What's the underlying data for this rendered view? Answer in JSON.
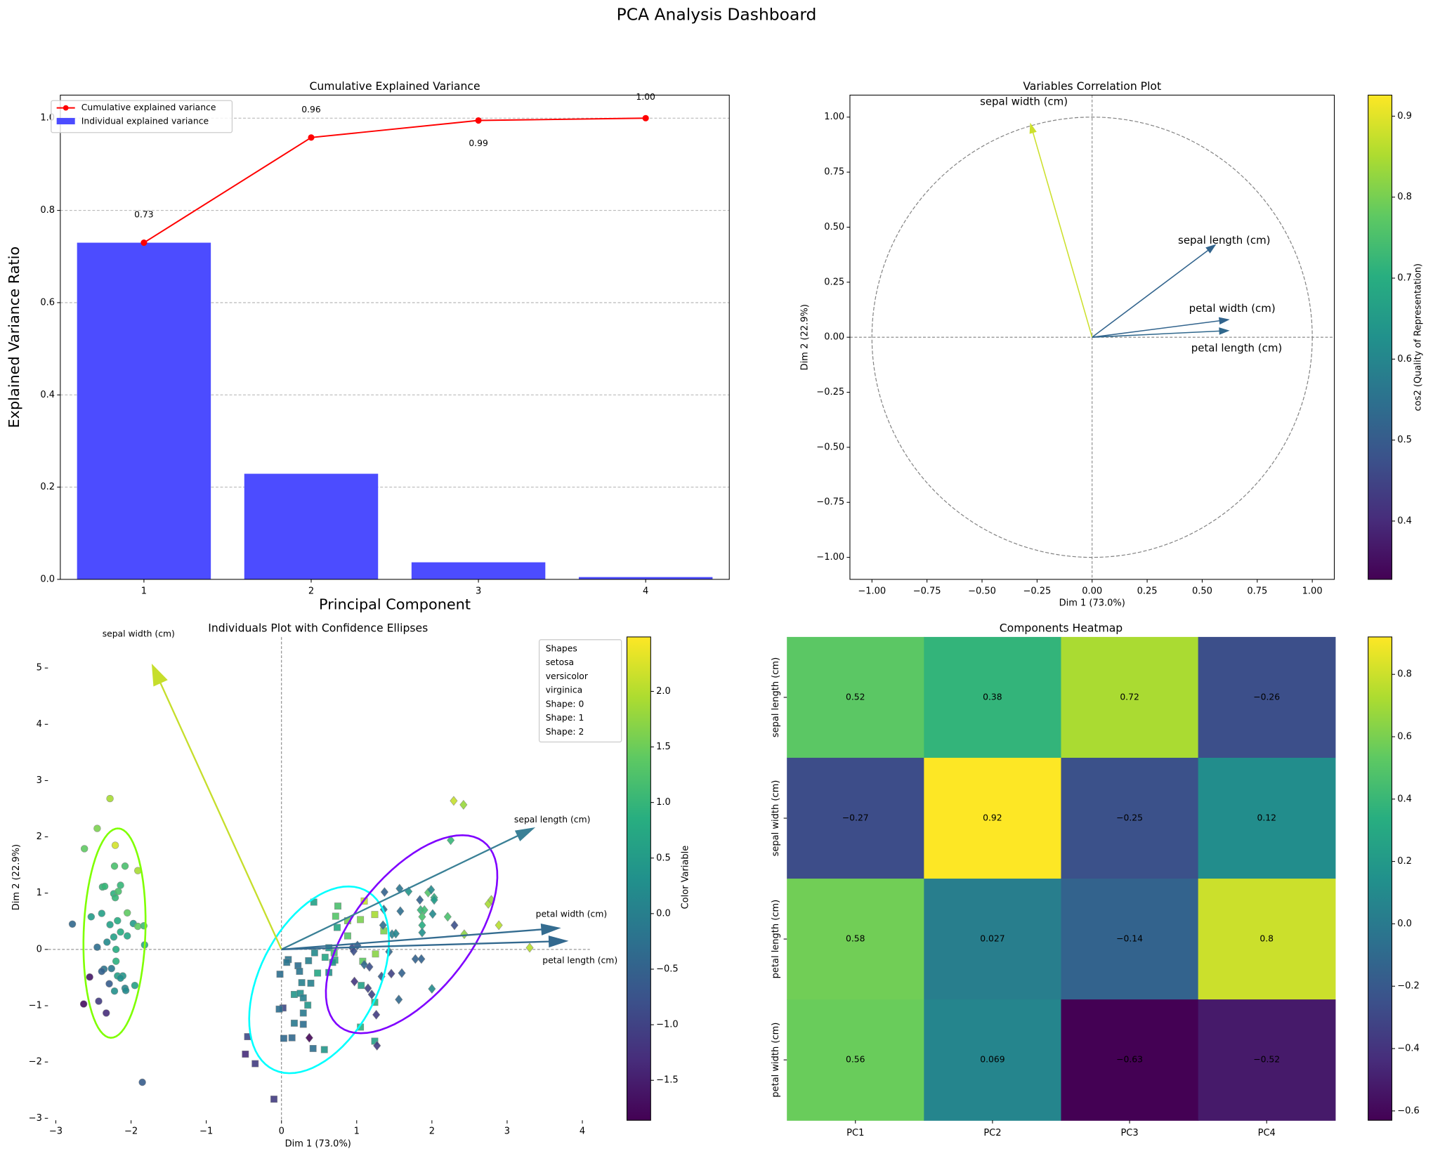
{
  "title": "PCA Analysis Dashboard",
  "viridis": [
    "#440154",
    "#472d7b",
    "#3b528b",
    "#2c728e",
    "#21918c",
    "#28ae80",
    "#5ec962",
    "#addc30",
    "#fde725"
  ],
  "chart_data": [
    {
      "type": "bar",
      "title": "Cumulative Explained Variance",
      "xlabel": "Principal Component",
      "ylabel": "Explained Variance Ratio",
      "categories": [
        1,
        2,
        3,
        4
      ],
      "xticks": [
        "1",
        "2",
        "3",
        "4"
      ],
      "yticks": [
        "0.0",
        "0.2",
        "0.4",
        "0.6",
        "0.8",
        "1.0"
      ],
      "ylim": [
        0,
        1.05
      ],
      "grid": "y, dashed",
      "legend_position": "top-left",
      "series": [
        {
          "name": "Individual explained variance",
          "type": "bar",
          "color": "#4c4cff",
          "values": [
            0.73,
            0.229,
            0.037,
            0.005
          ]
        },
        {
          "name": "Cumulative explained variance",
          "type": "line",
          "color": "#ff0000",
          "values": [
            0.73,
            0.958,
            0.995,
            1.0
          ]
        }
      ],
      "annotations": [
        "0.73",
        "0.96",
        "0.99",
        "1.00"
      ]
    },
    {
      "type": "scatter",
      "title": "Variables Correlation Plot",
      "xlabel": "Dim 1 (73.0%)",
      "ylabel": "Dim 2 (22.9%)",
      "xlim": [
        -1.1,
        1.1
      ],
      "ylim": [
        -1.1,
        1.1
      ],
      "xticks": [
        "-1.00",
        "-0.75",
        "-0.50",
        "-0.25",
        "0.00",
        "0.25",
        "0.50",
        "0.75",
        "1.00"
      ],
      "yticks": [
        "-1.00",
        "-0.75",
        "-0.50",
        "-0.25",
        "0.00",
        "0.25",
        "0.50",
        "0.75",
        "1.00"
      ],
      "vectors": [
        {
          "name": "sepal length (cm)",
          "x": 0.56,
          "y": 0.42,
          "cos2": 0.52
        },
        {
          "name": "sepal width (cm)",
          "x": -0.28,
          "y": 0.97,
          "cos2": 0.88
        },
        {
          "name": "petal length (cm)",
          "x": 0.62,
          "y": 0.03,
          "cos2": 0.53
        },
        {
          "name": "petal width (cm)",
          "x": 0.62,
          "y": 0.08,
          "cos2": 0.52
        }
      ],
      "colorbar": {
        "label": "cos2 (Quality of Representation)",
        "range": [
          0.328,
          0.926
        ],
        "ticks": [
          "0.4",
          "0.5",
          "0.6",
          "0.7",
          "0.8",
          "0.9"
        ]
      }
    },
    {
      "type": "scatter",
      "title": "Individuals Plot with Confidence Ellipses",
      "xlabel": "Dim 1 (73.0%)",
      "ylabel": "Dim 2 (22.9%)",
      "xlim": [
        -3.15,
        4.35
      ],
      "ylim": [
        -3.05,
        5.55
      ],
      "xticks": [
        "-3",
        "-2",
        "-1",
        "0",
        "1",
        "2",
        "3",
        "4"
      ],
      "yticks": [
        "-3",
        "-2",
        "-1",
        "0",
        "1",
        "2",
        "3",
        "4",
        "5"
      ],
      "legend": [
        "Shapes",
        "setosa",
        "versicolor",
        "virginica",
        "Shape: 0",
        "Shape: 1",
        "Shape: 2"
      ],
      "colorbar": {
        "label": "Color Variable",
        "range": [
          -1.86,
          2.49
        ],
        "ticks": [
          "-1.5",
          "-1.0",
          "-0.5",
          "0.0",
          "0.5",
          "1.0",
          "1.5",
          "2.0"
        ]
      },
      "groups": [
        {
          "name": "setosa",
          "marker": "circle",
          "ellipse_color": "#7fff00",
          "ellipse": {
            "center": [
              -2.22,
              0.29
            ],
            "u": [
              0.05,
              1.86
            ],
            "v": [
              0.41,
              -0.02
            ]
          },
          "points": [
            [
              -2.28,
              2.68,
              1.9
            ],
            [
              -2.45,
              2.15,
              1.6
            ],
            [
              -2.62,
              1.79,
              1.4
            ],
            [
              -2.21,
              1.85,
              2.2
            ],
            [
              -2.22,
              1.48,
              1.2
            ],
            [
              -2.08,
              1.48,
              1.2
            ],
            [
              -1.91,
              1.4,
              1.9
            ],
            [
              -2.38,
              1.11,
              1.0
            ],
            [
              -2.35,
              1.12,
              1.0
            ],
            [
              -2.14,
              1.14,
              1.0
            ],
            [
              -2.23,
              0.99,
              0.9
            ],
            [
              -2.17,
              1.03,
              1.2
            ],
            [
              -2.21,
              0.92,
              1.0
            ],
            [
              -2.05,
              0.65,
              1.4
            ],
            [
              -2.39,
              0.64,
              0.6
            ],
            [
              -2.53,
              0.58,
              0.5
            ],
            [
              -2.78,
              0.45,
              -0.4
            ],
            [
              -2.28,
              0.44,
              0.6
            ],
            [
              -2.18,
              0.51,
              0.8
            ],
            [
              -1.97,
              0.46,
              0.5
            ],
            [
              -1.91,
              0.41,
              1.4
            ],
            [
              -1.83,
              0.42,
              1.1
            ],
            [
              -2.14,
              0.31,
              0.8
            ],
            [
              -2.23,
              0.22,
              0.6
            ],
            [
              -2.05,
              0.24,
              0.7
            ],
            [
              -2.32,
              0.13,
              0.2
            ],
            [
              -2.45,
              0.04,
              -0.3
            ],
            [
              -2.2,
              0.0,
              0.8
            ],
            [
              -1.82,
              0.08,
              0.8
            ],
            [
              -2.2,
              -0.21,
              0.9
            ],
            [
              -2.36,
              -0.35,
              -0.2
            ],
            [
              -2.26,
              -0.34,
              -0.1
            ],
            [
              -2.39,
              -0.39,
              -0.5
            ],
            [
              -2.18,
              -0.47,
              0.6
            ],
            [
              -2.11,
              -0.47,
              0.4
            ],
            [
              -2.14,
              -0.51,
              0.3
            ],
            [
              -2.55,
              -0.49,
              -1.6
            ],
            [
              -2.29,
              -0.61,
              -0.6
            ],
            [
              -1.95,
              -0.64,
              0.6
            ],
            [
              -2.22,
              -0.74,
              0.3
            ],
            [
              -2.08,
              -0.69,
              0.1
            ],
            [
              -2.07,
              -0.73,
              0.2
            ],
            [
              -2.63,
              -0.97,
              -1.7
            ],
            [
              -2.43,
              -0.92,
              -1.1
            ],
            [
              -2.33,
              -1.13,
              -1.3
            ],
            [
              -1.85,
              -2.36,
              -0.6
            ]
          ]
        },
        {
          "name": "versicolor",
          "marker": "square",
          "ellipse_color": "#00ffff",
          "ellipse": {
            "center": [
              0.5,
              -0.54
            ],
            "u": [
              0.6,
              1.6
            ],
            "v": [
              0.71,
              -0.44
            ]
          },
          "points": [
            [
              0.43,
              0.84,
              0.6
            ],
            [
              0.75,
              0.77,
              1.2
            ],
            [
              0.72,
              0.59,
              1.3
            ],
            [
              1.1,
              0.86,
              2.1
            ],
            [
              1.05,
              0.53,
              1.6
            ],
            [
              1.24,
              0.62,
              1.9
            ],
            [
              0.88,
              0.51,
              1.6
            ],
            [
              0.74,
              0.39,
              0.7
            ],
            [
              1.36,
              0.33,
              1.6
            ],
            [
              0.88,
              0.24,
              1.3
            ],
            [
              0.63,
              0.03,
              0.4
            ],
            [
              0.44,
              -0.06,
              0.2
            ],
            [
              0.7,
              -0.06,
              1.2
            ],
            [
              1.25,
              -0.08,
              1.7
            ],
            [
              0.58,
              -0.14,
              0.7
            ],
            [
              0.09,
              -0.18,
              -0.2
            ],
            [
              0.07,
              -0.23,
              -0.2
            ],
            [
              0.36,
              -0.2,
              0.0
            ],
            [
              0.71,
              -0.19,
              0.8
            ],
            [
              0.68,
              -0.23,
              0.3
            ],
            [
              1.08,
              -0.21,
              1.4
            ],
            [
              0.22,
              -0.29,
              -0.3
            ],
            [
              0.24,
              -0.39,
              -0.2
            ],
            [
              -0.02,
              -0.44,
              -0.3
            ],
            [
              0.48,
              -0.42,
              0.7
            ],
            [
              0.63,
              -0.41,
              0.3
            ],
            [
              0.27,
              -0.59,
              0.0
            ],
            [
              0.39,
              -0.6,
              0.0
            ],
            [
              1.06,
              -0.64,
              0.6
            ],
            [
              0.17,
              -0.8,
              0.4
            ],
            [
              0.25,
              -0.78,
              0.3
            ],
            [
              0.29,
              -0.86,
              0.0
            ],
            [
              1.24,
              -0.94,
              0.9
            ],
            [
              0.35,
              -0.99,
              0.4
            ],
            [
              0.02,
              -1.04,
              -0.9
            ],
            [
              -0.03,
              -1.06,
              -0.3
            ],
            [
              0.29,
              -1.13,
              -0.1
            ],
            [
              0.17,
              -1.31,
              -0.1
            ],
            [
              0.29,
              -1.33,
              -0.3
            ],
            [
              1.05,
              -1.38,
              0.9
            ],
            [
              -0.45,
              -1.55,
              -0.9
            ],
            [
              0.03,
              -1.58,
              -0.4
            ],
            [
              0.14,
              -1.57,
              -0.4
            ],
            [
              1.24,
              -1.63,
              0.6
            ],
            [
              0.42,
              -1.76,
              -0.3
            ],
            [
              0.57,
              -1.78,
              0.4
            ],
            [
              -0.48,
              -1.86,
              -1.3
            ],
            [
              -0.35,
              -2.03,
              -1.1
            ],
            [
              -0.1,
              -2.66,
              -1.1
            ]
          ]
        },
        {
          "name": "virginica",
          "marker": "diamond",
          "ellipse_color": "#7f00ff",
          "ellipse": {
            "center": [
              1.73,
              0.27
            ],
            "u": [
              0.95,
              1.65
            ],
            "v": [
              0.63,
              -0.61
            ]
          },
          "points": [
            [
              2.29,
              2.64,
              2.1
            ],
            [
              2.42,
              2.57,
              1.8
            ],
            [
              2.25,
              1.94,
              1.0
            ],
            [
              1.37,
              1.02,
              -0.5
            ],
            [
              1.57,
              1.08,
              -0.2
            ],
            [
              1.69,
              1.03,
              0.4
            ],
            [
              1.95,
              1.01,
              1.3
            ],
            [
              1.99,
              1.06,
              0.2
            ],
            [
              2.03,
              0.92,
              0.9
            ],
            [
              2.03,
              0.88,
              0.5
            ],
            [
              1.84,
              0.88,
              -0.5
            ],
            [
              2.75,
              0.81,
              1.9
            ],
            [
              2.79,
              0.88,
              1.8
            ],
            [
              1.36,
              0.71,
              -0.2
            ],
            [
              1.58,
              0.68,
              -0.3
            ],
            [
              1.85,
              0.7,
              1.0
            ],
            [
              1.9,
              0.7,
              1.1
            ],
            [
              2.01,
              0.63,
              0.2
            ],
            [
              1.87,
              0.58,
              1.2
            ],
            [
              2.21,
              0.58,
              1.2
            ],
            [
              1.35,
              0.43,
              -0.3
            ],
            [
              1.87,
              0.43,
              0.8
            ],
            [
              2.3,
              0.43,
              -0.8
            ],
            [
              2.89,
              0.43,
              2.0
            ],
            [
              1.87,
              0.3,
              0.3
            ],
            [
              1.47,
              0.27,
              0.0
            ],
            [
              1.52,
              0.28,
              0.1
            ],
            [
              2.43,
              0.27,
              1.7
            ],
            [
              0.94,
              0.03,
              -0.9
            ],
            [
              1.01,
              0.07,
              -0.6
            ],
            [
              0.96,
              -0.03,
              -0.8
            ],
            [
              1.43,
              -0.04,
              -0.4
            ],
            [
              3.3,
              0.03,
              2.0
            ],
            [
              1.78,
              -0.17,
              -0.5
            ],
            [
              1.86,
              -0.17,
              -0.5
            ],
            [
              1.1,
              -0.27,
              -0.4
            ],
            [
              1.17,
              -0.31,
              -0.8
            ],
            [
              1.33,
              -0.48,
              -0.6
            ],
            [
              1.46,
              -0.43,
              -1.0
            ],
            [
              1.6,
              -0.42,
              -0.5
            ],
            [
              0.97,
              -0.57,
              -1.2
            ],
            [
              1.15,
              -0.69,
              -1.0
            ],
            [
              1.2,
              -0.8,
              -1.0
            ],
            [
              2.0,
              -0.7,
              0.2
            ],
            [
              1.56,
              -0.89,
              -0.4
            ],
            [
              1.26,
              -1.16,
              -1.1
            ],
            [
              1.27,
              -1.71,
              -1.1
            ],
            [
              0.37,
              -1.57,
              -1.8
            ]
          ]
        }
      ],
      "vectors": [
        {
          "name": "sepal length (cm)",
          "x": 3.36,
          "y": 2.16,
          "color": "#3a8096"
        },
        {
          "name": "sepal width (cm)",
          "x": -1.72,
          "y": 5.06,
          "color": "#c6de2c"
        },
        {
          "name": "petal length (cm)",
          "x": 3.8,
          "y": 0.15,
          "color": "#33698f"
        },
        {
          "name": "petal width (cm)",
          "x": 3.7,
          "y": 0.38,
          "color": "#346c90"
        }
      ]
    },
    {
      "type": "heatmap",
      "title": "Components Heatmap",
      "columns": [
        "PC1",
        "PC2",
        "PC3",
        "PC4"
      ],
      "rows": [
        "sepal length (cm)",
        "sepal width (cm)",
        "petal length (cm)",
        "petal width (cm)"
      ],
      "values": [
        [
          0.52,
          0.38,
          0.72,
          -0.26
        ],
        [
          -0.27,
          0.92,
          -0.25,
          0.12
        ],
        [
          0.58,
          0.027,
          -0.14,
          0.8
        ],
        [
          0.56,
          0.069,
          -0.63,
          -0.52
        ]
      ],
      "labels": [
        [
          "0.52",
          "0.38",
          "0.72",
          "-0.26"
        ],
        [
          "-0.27",
          "0.92",
          "-0.25",
          "0.12"
        ],
        [
          "0.58",
          "0.027",
          "-0.14",
          "0.8"
        ],
        [
          "0.56",
          "0.069",
          "-0.63",
          "-0.52"
        ]
      ],
      "colorbar": {
        "range": [
          -0.63,
          0.92
        ],
        "ticks": [
          "-0.6",
          "-0.4",
          "-0.2",
          "0.0",
          "0.2",
          "0.4",
          "0.6",
          "0.8"
        ]
      }
    }
  ]
}
